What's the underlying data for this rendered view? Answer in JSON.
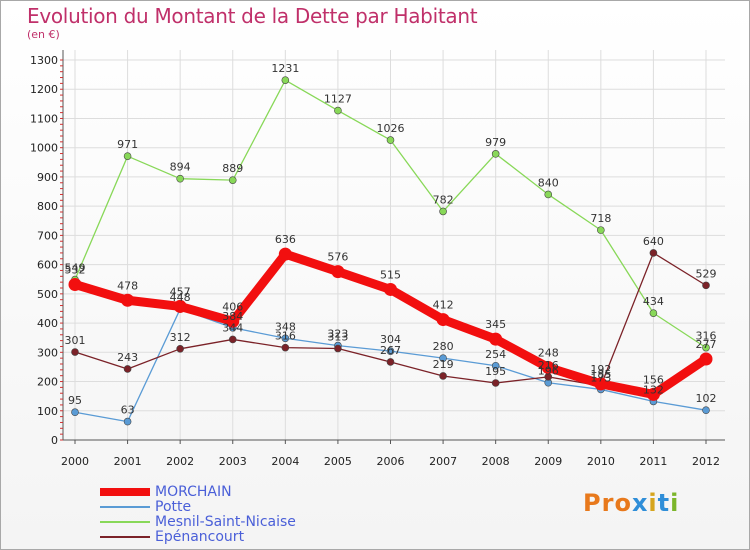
{
  "title": "Evolution du Montant de la Dette par Habitant",
  "subtitle": "(en €)",
  "logo": {
    "text": "Proxiti",
    "colors": [
      "#e8791c",
      "#e8791c",
      "#e8791c",
      "#2f8ed8",
      "#d6a51e",
      "#2f8ed8",
      "#7bb52a"
    ]
  },
  "chart_data": {
    "type": "line",
    "x": [
      "2000",
      "2001",
      "2002",
      "2003",
      "2004",
      "2005",
      "2006",
      "2007",
      "2008",
      "2009",
      "2010",
      "2011",
      "2012"
    ],
    "ylim": [
      0,
      1300
    ],
    "yticks": [
      0,
      100,
      200,
      300,
      400,
      500,
      600,
      700,
      800,
      900,
      1000,
      1100,
      1200,
      1300
    ],
    "grid": true,
    "legend_position": "bottom-left",
    "series": [
      {
        "name": "MORCHAIN",
        "color": "#f20f0f",
        "emphasis": true,
        "values": [
          532,
          478,
          457,
          406,
          636,
          576,
          515,
          412,
          345,
          248,
          192,
          156,
          277
        ],
        "labels": [
          "532",
          "478",
          "457",
          "406",
          "636",
          "576",
          "515",
          "412",
          "345",
          "248",
          "192",
          "156",
          "277"
        ]
      },
      {
        "name": "Potte",
        "color": "#5a9bd5",
        "values": [
          95,
          63,
          448,
          384,
          348,
          323,
          304,
          280,
          254,
          196,
          173,
          132,
          102
        ],
        "labels": [
          "95",
          "63",
          "448",
          "384",
          "348",
          "323",
          "304",
          "280",
          "254",
          "196",
          "173",
          "132",
          "102"
        ]
      },
      {
        "name": "Mesnil-Saint-Nicaise",
        "color": "#88d858",
        "values": [
          549,
          971,
          894,
          889,
          1231,
          1127,
          1026,
          782,
          979,
          840,
          718,
          434,
          316
        ],
        "labels": [
          "549",
          "971",
          "894",
          "889",
          "1231",
          "1127",
          "1026",
          "782",
          "979",
          "840",
          "718",
          "434",
          "316"
        ]
      },
      {
        "name": "Epénancourt",
        "color": "#7b2228",
        "values": [
          301,
          243,
          312,
          344,
          316,
          313,
          267,
          219,
          195,
          216,
          185,
          640,
          529
        ],
        "labels": [
          "301",
          "243",
          "312",
          "344",
          "316",
          "313",
          "267",
          "219",
          "195",
          "216",
          "185",
          "640",
          "529"
        ]
      }
    ]
  }
}
